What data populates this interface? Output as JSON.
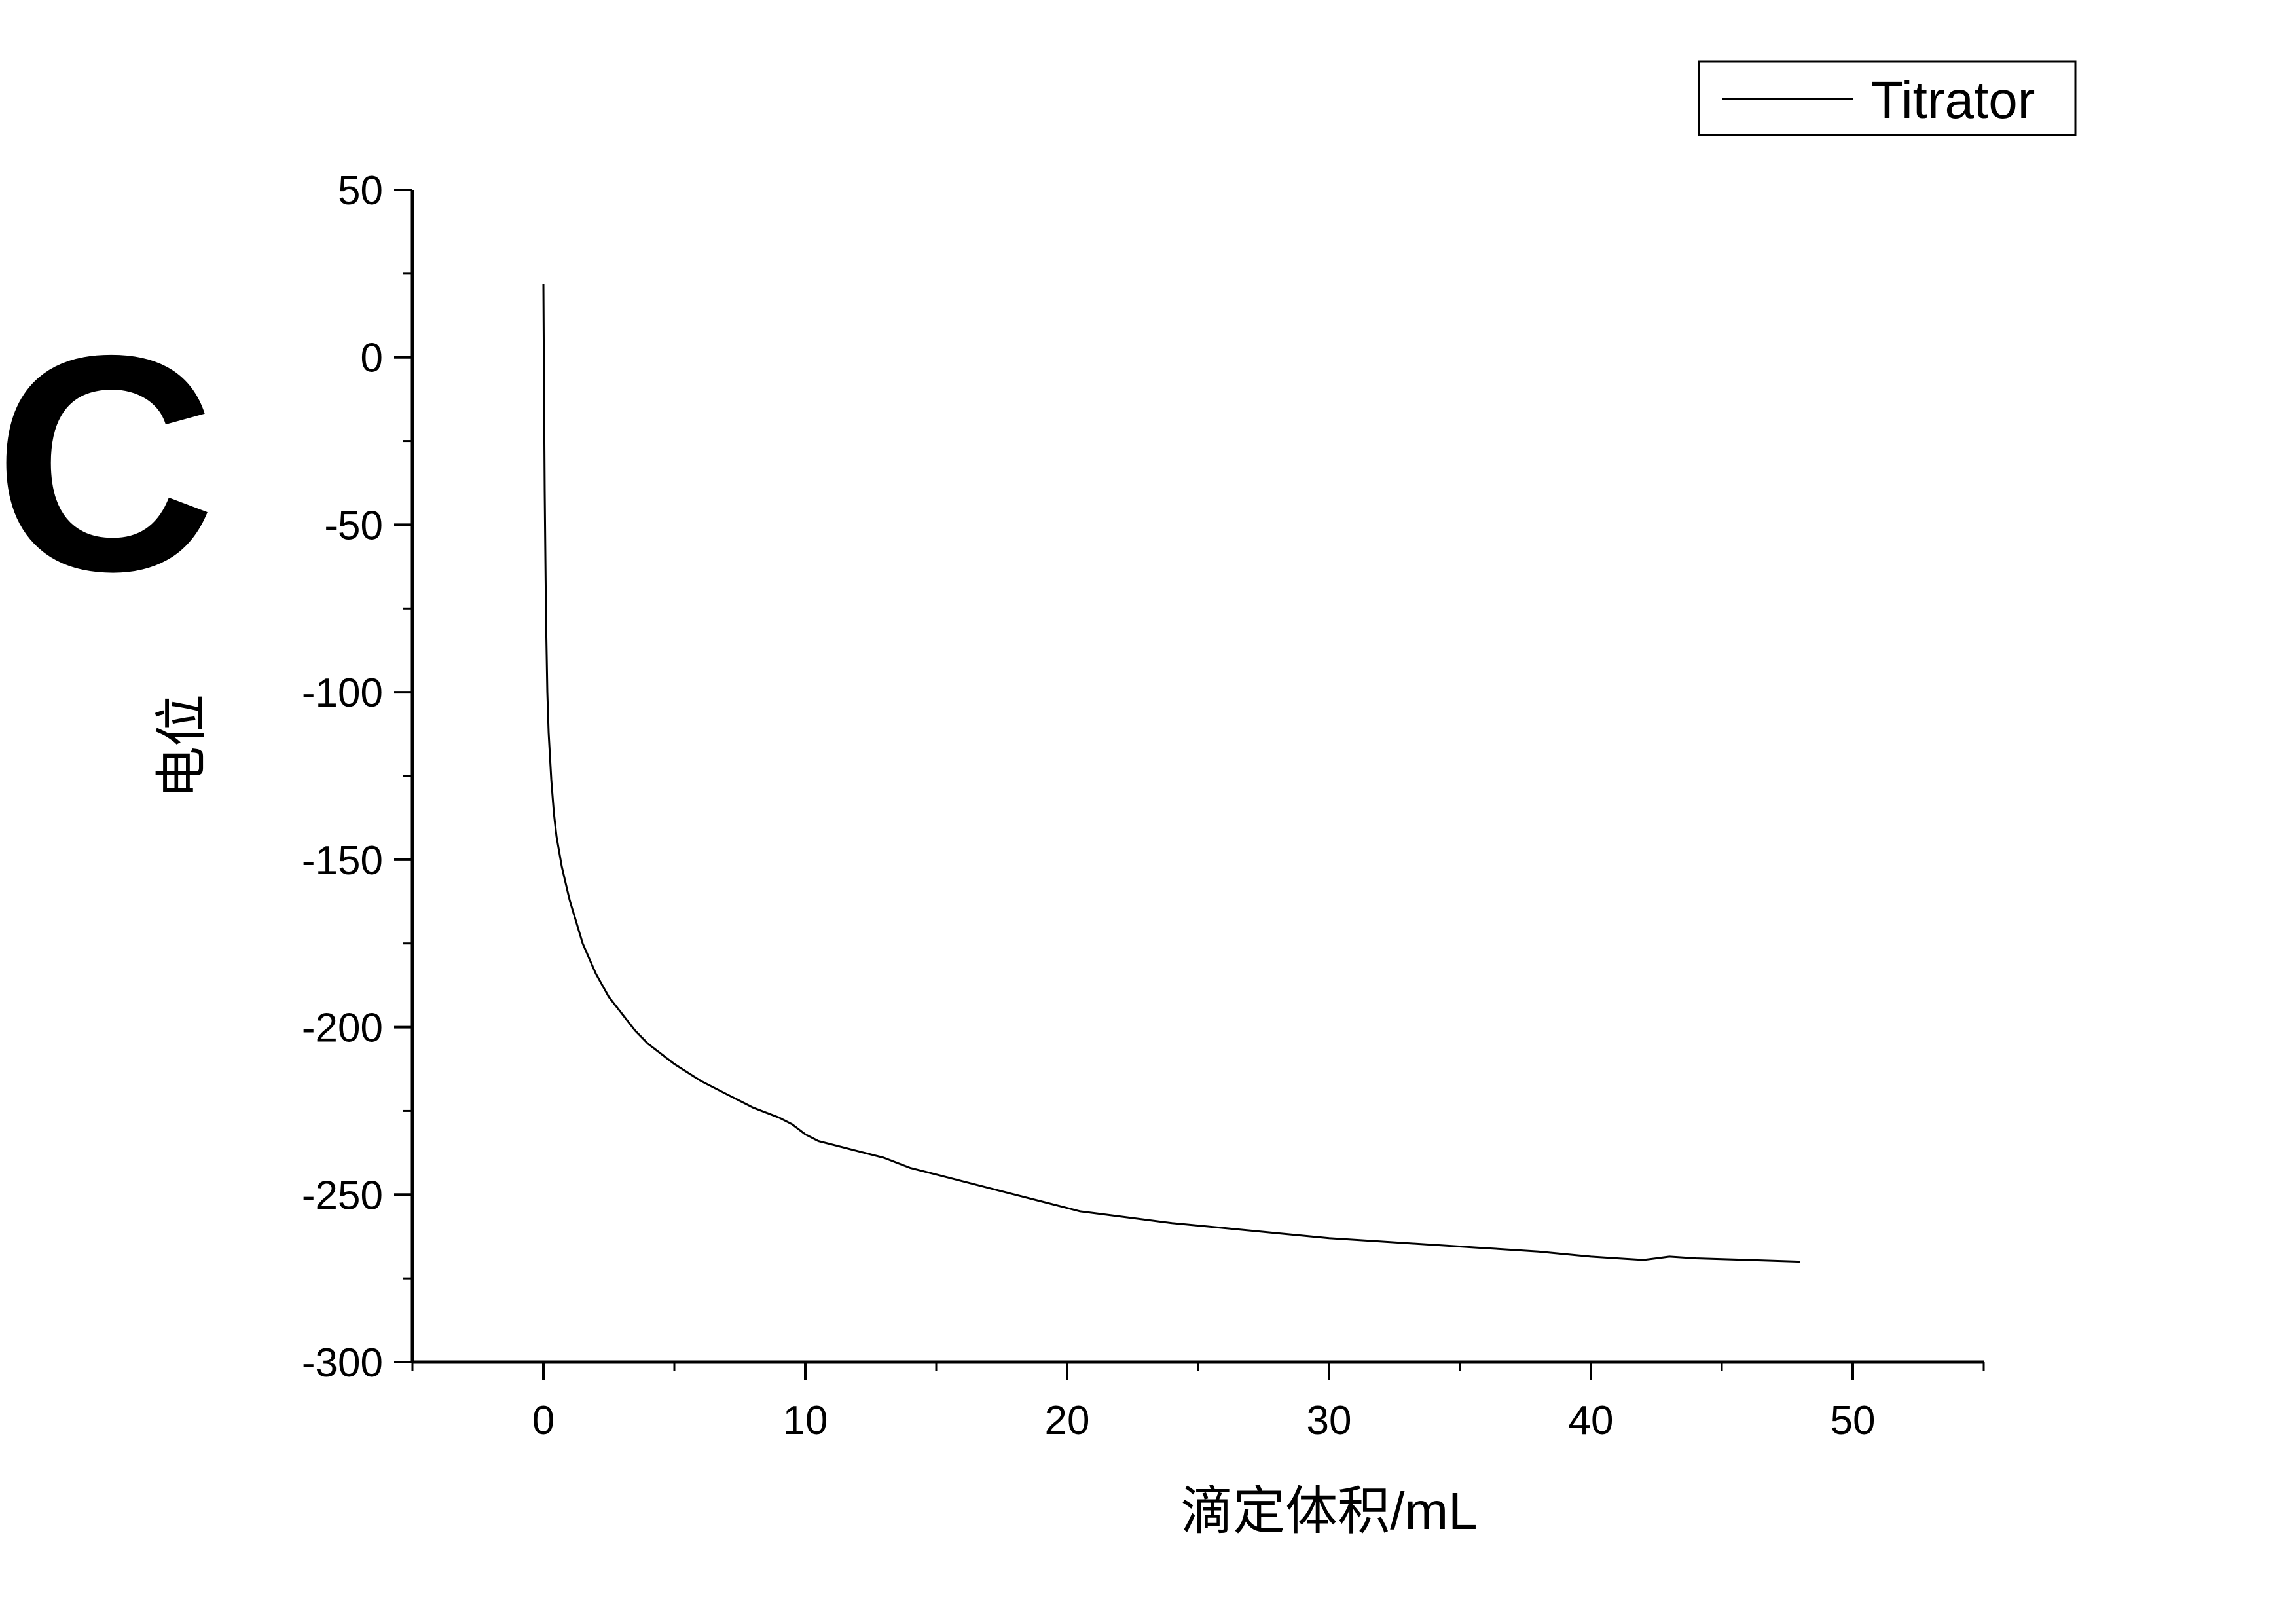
{
  "panel_label": "C",
  "chart_data": {
    "type": "line",
    "xlabel": "滴定体积/mL",
    "ylabel": "电位",
    "xlim": [
      -5,
      55
    ],
    "ylim": [
      -300,
      50
    ],
    "xticks": [
      0,
      10,
      20,
      30,
      40,
      50
    ],
    "xtick_labels": [
      "0",
      "10",
      "20",
      "30",
      "40",
      "50"
    ],
    "yticks": [
      50,
      0,
      -50,
      -100,
      -150,
      -200,
      -250,
      -300
    ],
    "ytick_labels": [
      "50",
      "0",
      "-50",
      "-100",
      "-150",
      "-200",
      "-250",
      "-300"
    ],
    "grid": false,
    "legend": {
      "position": "top-right",
      "entries": [
        "Titrator"
      ]
    },
    "series": [
      {
        "name": "Titrator",
        "color": "#000000",
        "x": [
          0.0,
          0.02,
          0.05,
          0.1,
          0.15,
          0.2,
          0.3,
          0.4,
          0.5,
          0.7,
          1.0,
          1.5,
          2.0,
          2.5,
          3.0,
          3.5,
          4.0,
          5.0,
          6.0,
          7.0,
          8.0,
          9.0,
          9.5,
          10.0,
          10.5,
          12.0,
          13.0,
          14.0,
          15.0,
          16.0,
          17.0,
          18.0,
          19.0,
          20.0,
          20.5,
          21.0,
          22.0,
          24.0,
          26.0,
          28.0,
          30.0,
          32.0,
          34.0,
          36.0,
          38.0,
          40.0,
          41.0,
          42.0,
          42.5,
          43.0,
          44.0,
          46.0,
          48.0
        ],
        "y": [
          22,
          -5,
          -40,
          -78,
          -100,
          -112,
          -126,
          -136,
          -143,
          -152,
          -162,
          -175,
          -184,
          -191,
          -196,
          -201,
          -205,
          -211,
          -216,
          -220,
          -224,
          -227,
          -229,
          -232,
          -234,
          -237,
          -239,
          -242,
          -244,
          -246,
          -248,
          -250,
          -252,
          -254,
          -255,
          -255.5,
          -256.5,
          -258.5,
          -260,
          -261.5,
          -263,
          -264,
          -265,
          -266,
          -267,
          -268.5,
          -269,
          -269.5,
          -269,
          -268.5,
          -269,
          -269.5,
          -270
        ]
      }
    ]
  }
}
